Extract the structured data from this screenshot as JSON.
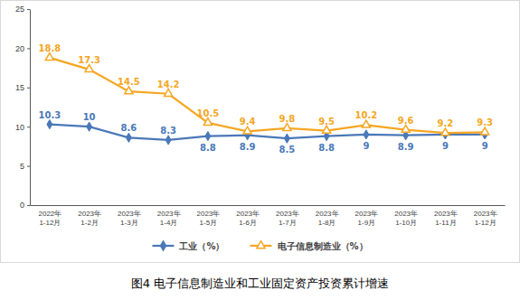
{
  "chart_data": {
    "type": "line",
    "title": "图4 电子信息制造业和工业固定资产投资累计增速",
    "categories": [
      "2022年1-12月",
      "2023年1-2月",
      "2023年1-3月",
      "2023年1-4月",
      "2023年1-5月",
      "2023年1-6月",
      "2023年1-7月",
      "2023年1-8月",
      "2023年1-9月",
      "2023年1-10月",
      "2023年1-11月",
      "2023年1-12月"
    ],
    "series": [
      {
        "name": "工业（%）",
        "color": "#4a78b8",
        "marker": "diamond",
        "values": [
          10.3,
          10.0,
          8.6,
          8.3,
          8.8,
          8.9,
          8.5,
          8.8,
          9.0,
          8.9,
          9.0,
          9.0
        ]
      },
      {
        "name": "电子信息制造业（%）",
        "color": "#f5a623",
        "marker": "triangle",
        "values": [
          18.8,
          17.3,
          14.5,
          14.2,
          10.5,
          9.4,
          9.8,
          9.5,
          10.2,
          9.6,
          9.2,
          9.3
        ]
      }
    ],
    "ylim": [
      0,
      25
    ],
    "yticks": [
      0,
      5,
      10,
      15,
      20,
      25
    ],
    "grid": false,
    "data_labels": true,
    "legend": "bottom"
  }
}
